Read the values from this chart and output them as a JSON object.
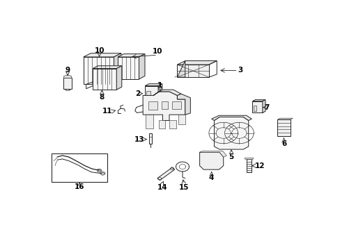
{
  "bg_color": "#ffffff",
  "line_color": "#222222",
  "label_color": "#000000",
  "figsize": [
    4.89,
    3.6
  ],
  "dpi": 100,
  "lw_main": 0.7,
  "lw_thin": 0.4,
  "font_size": 7.5,
  "font_bold": true,
  "arrow_lw": 0.6,
  "label_positions": {
    "1": [
      0.445,
      0.685,
      "center",
      "bottom"
    ],
    "2": [
      0.385,
      0.62,
      "left",
      "center"
    ],
    "3": [
      0.735,
      0.73,
      "left",
      "center"
    ],
    "4": [
      0.625,
      0.195,
      "center",
      "top"
    ],
    "5": [
      0.72,
      0.31,
      "center",
      "top"
    ],
    "6": [
      0.93,
      0.38,
      "center",
      "top"
    ],
    "7": [
      0.825,
      0.57,
      "left",
      "center"
    ],
    "8": [
      0.215,
      0.46,
      "center",
      "top"
    ],
    "9": [
      0.1,
      0.7,
      "center",
      "top"
    ],
    "10a": [
      0.35,
      0.84,
      "center",
      "top"
    ],
    "10b": [
      0.48,
      0.87,
      "center",
      "top"
    ],
    "11": [
      0.225,
      0.56,
      "right",
      "center"
    ],
    "12": [
      0.82,
      0.25,
      "left",
      "center"
    ],
    "13": [
      0.365,
      0.42,
      "left",
      "center"
    ],
    "14": [
      0.43,
      0.195,
      "center",
      "top"
    ],
    "15": [
      0.53,
      0.195,
      "center",
      "top"
    ],
    "16": [
      0.13,
      0.195,
      "center",
      "top"
    ]
  }
}
